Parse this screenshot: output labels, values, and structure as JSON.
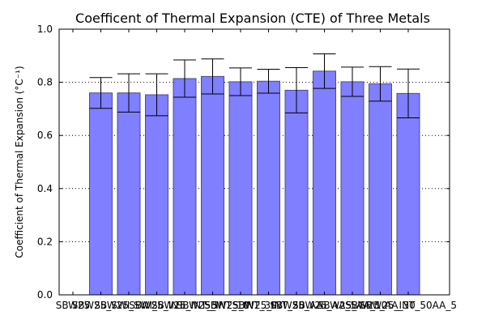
{
  "chart_data": {
    "type": "bar",
    "title": "Coefficent of Thermal Expansion (CTE) of Three Metals",
    "xlabel": "",
    "ylabel": "Coefficient of Thermal Expansion (°C⁻¹)",
    "ylim": [
      0,
      1.0
    ],
    "yticks": [
      "0.0",
      "0.2",
      "0.4",
      "0.6",
      "0.8",
      "1.0"
    ],
    "ygrid": "dotted",
    "bar_color": "#7f7fff",
    "bar_edge": "#4b4b8f",
    "categories": [
      "SBW25",
      "SBW25_SWI",
      "SBW25_SWI_5",
      "SBW25_INT",
      "SBW25_INT_5",
      "SBW25_INT_10",
      "SBW25_INT_30",
      "SBW25_INT_50",
      "SBW25_AA",
      "SBW25_AA_5",
      "SBW25_AA_10",
      "SBW25_AA_30",
      "SBW25_INT_50AA_5"
    ],
    "values": [
      null,
      0.76,
      0.76,
      0.753,
      0.814,
      0.822,
      0.802,
      0.804,
      0.77,
      0.842,
      0.802,
      0.794,
      0.758
    ],
    "errors": [
      null,
      0.058,
      0.072,
      0.079,
      0.07,
      0.066,
      0.052,
      0.045,
      0.085,
      0.065,
      0.055,
      0.065,
      0.092
    ]
  }
}
